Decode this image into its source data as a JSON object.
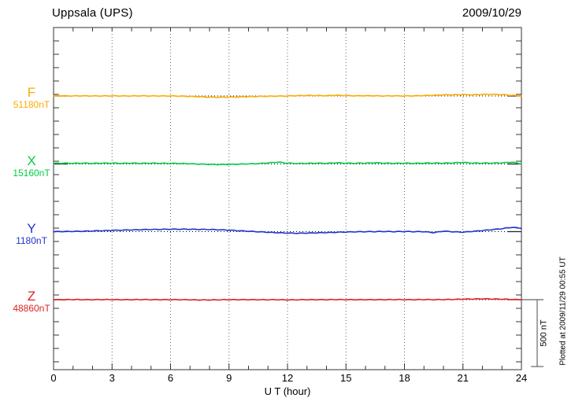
{
  "header": {
    "title": "Uppsala (UPS)",
    "date": "2009/10/29"
  },
  "axes": {
    "xlabel": "U T (hour)",
    "x_ticks": [
      0,
      3,
      6,
      9,
      12,
      15,
      18,
      21,
      24
    ],
    "x_minor_step_hours": 1
  },
  "scale_bar": {
    "label": "500 nT",
    "nT": 500
  },
  "footer_note": "Plotted at 2009/11/29 00:55 UT",
  "colors": {
    "frame": "#333333",
    "gridline": "#666666",
    "baseline": "#000000",
    "scale_bar": "#666666",
    "F": "#ffaa00",
    "X": "#00cc44",
    "Y": "#2233cc",
    "Z": "#dd2222"
  },
  "chart_data": {
    "type": "line",
    "title": "Uppsala (UPS) magnetogram 2009/10/29",
    "xlabel": "U T (hour)",
    "x_range": [
      0,
      24
    ],
    "x_ticks": [
      0,
      3,
      6,
      9,
      12,
      15,
      18,
      21,
      24
    ],
    "grid": "vertical dotted every 3 h; dotted horizontal baseline per trace",
    "offsets_unit": "nT",
    "scale_bar_nT": 500,
    "x": [
      0,
      0.5,
      1,
      1.5,
      2,
      2.5,
      3,
      3.5,
      4,
      4.5,
      5,
      5.5,
      6,
      6.5,
      7,
      7.5,
      8,
      8.5,
      9,
      9.5,
      10,
      10.5,
      11,
      11.5,
      12,
      12.5,
      13,
      13.5,
      14,
      14.5,
      15,
      15.5,
      16,
      16.5,
      17,
      17.5,
      18,
      18.5,
      19,
      19.5,
      20,
      20.5,
      21,
      21.5,
      22,
      22.5,
      23,
      23.5,
      24
    ],
    "series": [
      {
        "name": "F",
        "baseline_label": "51180nT",
        "baseline_nT": 51180,
        "color": "#ffaa00",
        "offsets_nT": [
          0,
          1,
          0,
          1,
          0,
          0,
          1,
          0,
          0,
          1,
          0,
          0,
          0,
          -1,
          -3,
          -6,
          -9,
          -10,
          -9,
          -7,
          -5,
          -3,
          -2,
          -1,
          0,
          2,
          4,
          3,
          2,
          5,
          3,
          1,
          2,
          1,
          0,
          1,
          0,
          1,
          3,
          5,
          8,
          9,
          10,
          9,
          11,
          12,
          10,
          5,
          0
        ]
      },
      {
        "name": "X",
        "baseline_label": "15160nT",
        "baseline_nT": 15160,
        "color": "#00cc44",
        "offsets_nT": [
          5,
          6,
          5,
          6,
          5,
          6,
          6,
          5,
          6,
          5,
          6,
          5,
          5,
          4,
          2,
          -1,
          -3,
          -4,
          -3,
          -1,
          1,
          3,
          8,
          14,
          6,
          4,
          5,
          6,
          5,
          9,
          6,
          5,
          7,
          9,
          6,
          5,
          6,
          5,
          6,
          7,
          6,
          8,
          12,
          7,
          6,
          7,
          8,
          14,
          2
        ]
      },
      {
        "name": "Y",
        "baseline_label": "1180nT",
        "baseline_nT": 1180,
        "color": "#2233cc",
        "offsets_nT": [
          0,
          1,
          2,
          3,
          5,
          7,
          9,
          11,
          13,
          15,
          16,
          17,
          18,
          18,
          18,
          17,
          16,
          14,
          11,
          7,
          3,
          -1,
          -5,
          -8,
          -11,
          -12,
          -11,
          -9,
          -7,
          -5,
          -3,
          -1,
          0,
          0,
          1,
          0,
          1,
          0,
          0,
          -8,
          4,
          -1,
          -4,
          2,
          8,
          15,
          22,
          32,
          26
        ]
      },
      {
        "name": "Z",
        "baseline_label": "48860nT",
        "baseline_nT": 48860,
        "color": "#dd2222",
        "offsets_nT": [
          0,
          0,
          1,
          0,
          0,
          1,
          0,
          0,
          0,
          1,
          0,
          0,
          0,
          0,
          -1,
          -2,
          -2,
          -1,
          0,
          0,
          0,
          0,
          -1,
          0,
          -2,
          -1,
          0,
          0,
          0,
          1,
          0,
          0,
          0,
          0,
          0,
          1,
          0,
          0,
          1,
          0,
          1,
          2,
          4,
          5,
          6,
          5,
          4,
          2,
          0
        ]
      }
    ]
  }
}
